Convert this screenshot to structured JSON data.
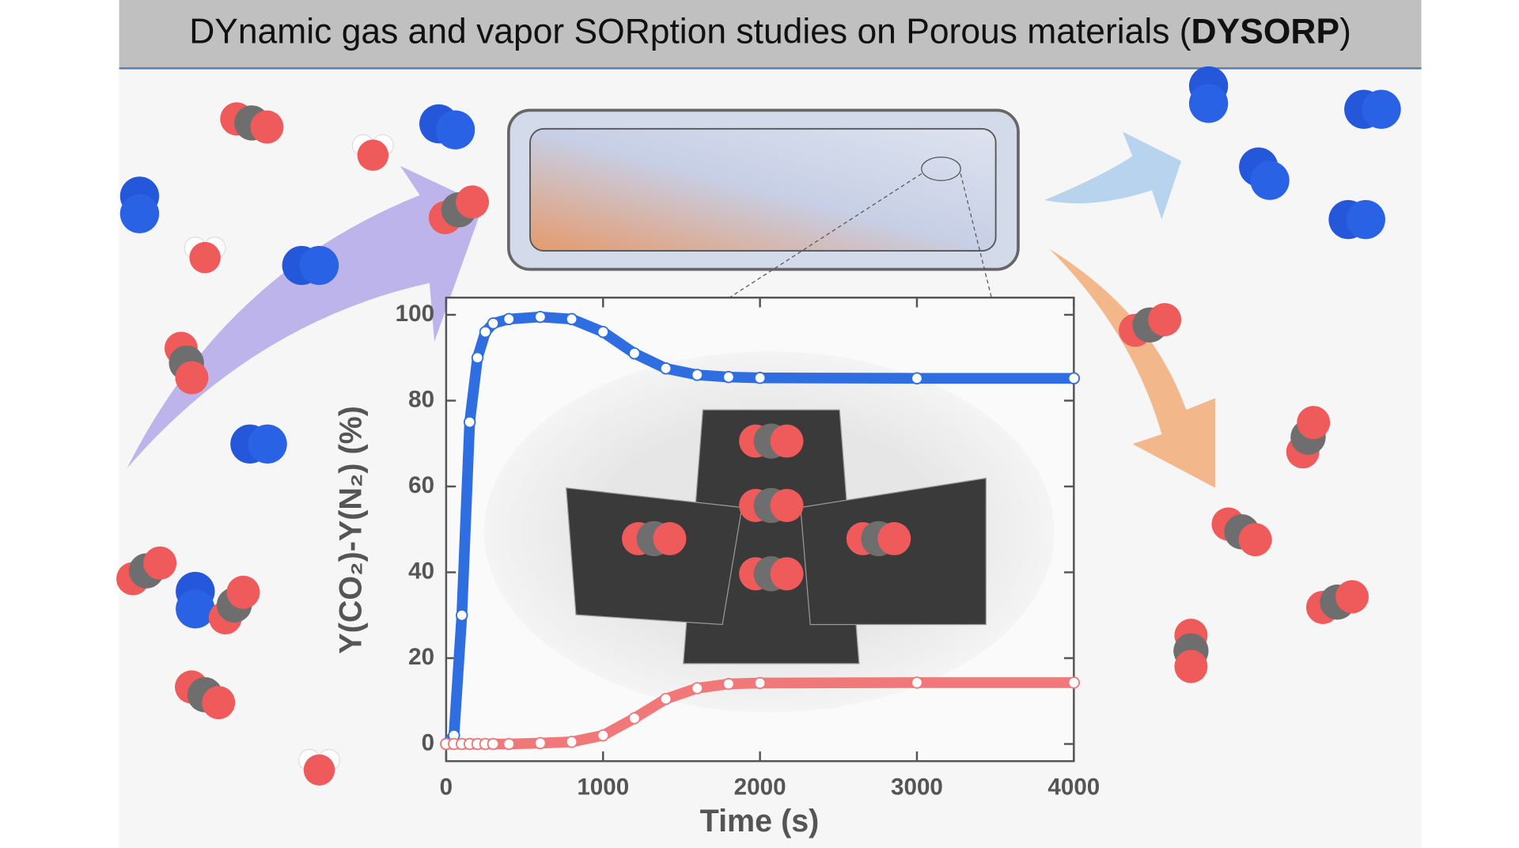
{
  "header": {
    "title": [
      "DYnamic gas and vapor SORption studies on Porous materials (",
      "DYSORP",
      ")"
    ]
  },
  "chart_data": {
    "type": "line",
    "x_label": "Time (s)",
    "y_label": "Y(CO₂)-Y(N₂) (%)",
    "x": [
      0,
      50,
      100,
      150,
      200,
      250,
      300,
      400,
      600,
      800,
      1000,
      1200,
      1400,
      1600,
      1800,
      2000,
      3000,
      4000
    ],
    "series": [
      {
        "color": "#2f6ee0",
        "values": [
          0,
          2,
          30,
          75,
          90,
          96,
          98,
          99,
          99.5,
          99,
          96,
          91,
          87.5,
          86,
          85.5,
          85.3,
          85.2,
          85.2
        ]
      },
      {
        "color": "#f07878",
        "values": [
          0,
          0,
          0,
          0,
          0,
          0,
          0,
          0,
          0.2,
          0.5,
          2,
          6,
          10.5,
          13,
          14,
          14.2,
          14.3,
          14.3
        ]
      }
    ],
    "xlim": [
      0,
      4000
    ],
    "xticks": [
      0,
      1000,
      2000,
      3000,
      4000
    ],
    "ylim": [
      -4,
      104
    ],
    "yticks": [
      0,
      20,
      40,
      60,
      80,
      100
    ]
  }
}
